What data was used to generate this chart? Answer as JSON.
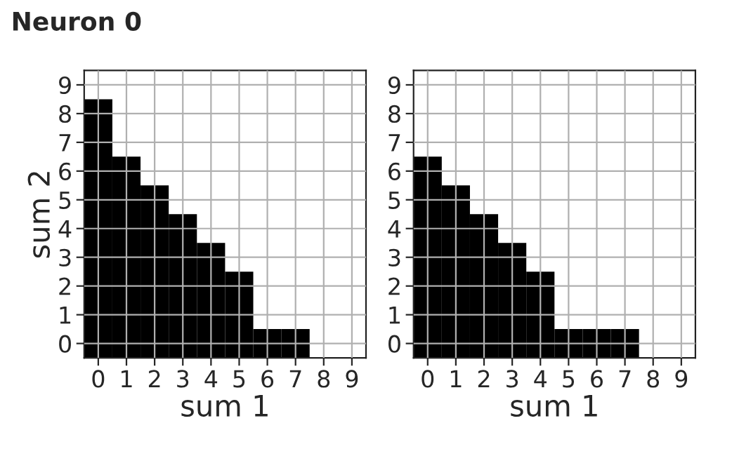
{
  "chart_data": [
    {
      "type": "bar",
      "title": "Neuron 0",
      "xlabel": "sum 1",
      "ylabel": "sum 2",
      "grid": true,
      "color": "#000000",
      "categories": [
        "0",
        "1",
        "2",
        "3",
        "4",
        "5",
        "6",
        "7",
        "8",
        "9"
      ],
      "values": [
        9,
        7,
        6,
        5,
        4,
        3,
        1,
        1,
        null,
        null
      ],
      "base": [
        -0.5,
        -0.5,
        -0.5,
        -0.5,
        -0.5,
        -0.5,
        -0.5,
        -0.5,
        null,
        null
      ],
      "ylim": [
        -0.5,
        9.5
      ],
      "yticks": [
        0,
        1,
        2,
        3,
        4,
        5,
        6,
        7,
        8,
        9
      ]
    },
    {
      "type": "bar",
      "xlabel": "sum 1",
      "grid": true,
      "color": "#000000",
      "categories": [
        "0",
        "1",
        "2",
        "3",
        "4",
        "5",
        "6",
        "7",
        "8",
        "9"
      ],
      "values": [
        7,
        6,
        5,
        4,
        3,
        1,
        1,
        1,
        null,
        null
      ],
      "base": [
        -0.5,
        -0.5,
        -0.5,
        -0.5,
        -0.5,
        -0.5,
        -0.5,
        -0.5,
        null,
        null
      ],
      "ylim": [
        -0.5,
        9.5
      ],
      "yticks": [
        0,
        1,
        2,
        3,
        4,
        5,
        6,
        7,
        8,
        9
      ]
    }
  ]
}
